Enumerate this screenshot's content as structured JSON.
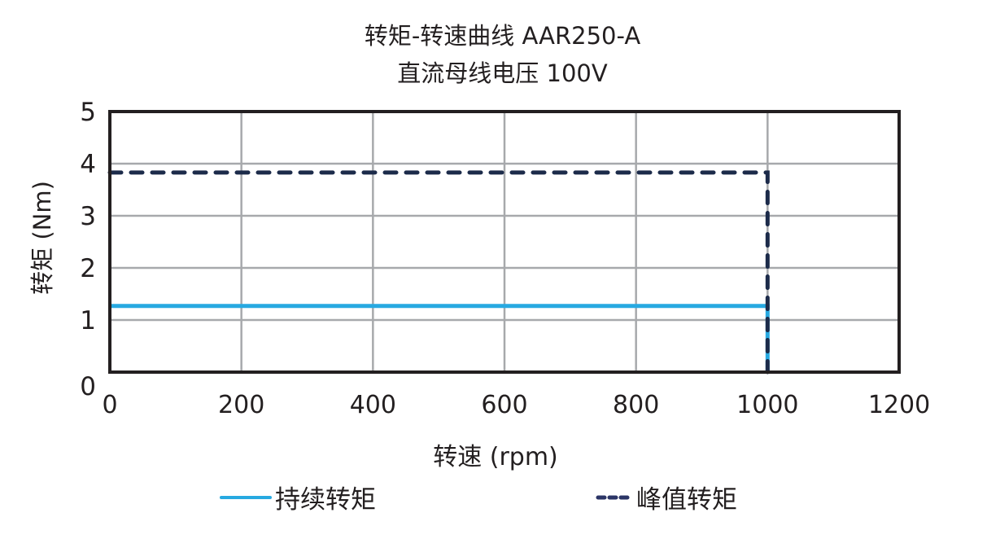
{
  "chart_data": {
    "type": "line",
    "title": "转矩-转速曲线 AAR250-A",
    "subtitle": "直流母线电压 100V",
    "xlabel": "转速 (rpm)",
    "ylabel": "转矩 (Nm)",
    "xlim": [
      0,
      1200
    ],
    "ylim": [
      0,
      5
    ],
    "xticks": [
      0,
      200,
      400,
      600,
      800,
      1000,
      1200
    ],
    "yticks": [
      0,
      1,
      2,
      3,
      4,
      5
    ],
    "grid": true,
    "legend_position": "bottom",
    "series": [
      {
        "name": "持续转矩",
        "style": "solid",
        "color": "#27a9e1",
        "x": [
          0,
          1000,
          1000
        ],
        "y": [
          1.27,
          1.27,
          0
        ]
      },
      {
        "name": "峰值转矩",
        "style": "dashed",
        "color": "#1c2b4a",
        "x": [
          0,
          1000,
          1000
        ],
        "y": [
          3.83,
          3.83,
          0
        ]
      }
    ]
  },
  "title": {
    "line1": "转矩-转速曲线 AAR250-A",
    "line2": "直流母线电压 100V"
  },
  "axes": {
    "xlabel": "转速 (rpm)",
    "ylabel": "转矩 (Nm)",
    "xticks": [
      "0",
      "200",
      "400",
      "600",
      "800",
      "1000",
      "1200"
    ],
    "yticks": [
      "0",
      "1",
      "2",
      "3",
      "4",
      "5"
    ]
  },
  "legend": {
    "continuous": "持续转矩",
    "peak": "峰值转矩"
  },
  "colors": {
    "continuous": "#27a9e1",
    "peak": "#1c2b4a",
    "grid": "#a7a9ac",
    "frame": "#231f20"
  }
}
